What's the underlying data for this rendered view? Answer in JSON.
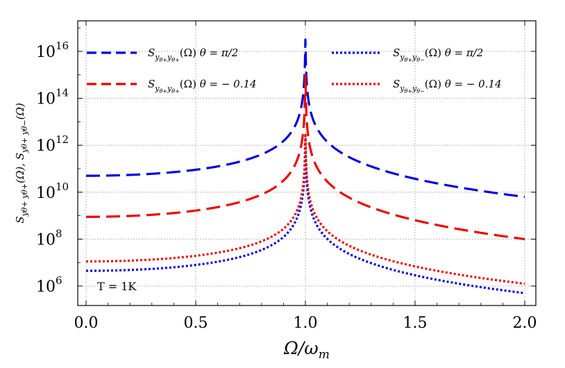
{
  "chart_data": {
    "type": "line",
    "xlabel": "Ω/ω_m",
    "ylabel": "S_{yθ+ yθ+}(Ω), S_{yθ+ yθ−}(Ω)",
    "xlim": [
      0.0,
      2.0
    ],
    "ylim_log10": [
      5.3,
      17.4
    ],
    "y_scale": "log",
    "x_ticks": [
      0.0,
      0.5,
      1.0,
      1.5,
      2.0
    ],
    "x_tick_labels": [
      "0.0",
      "0.5",
      "1.0",
      "1.5",
      "2.0"
    ],
    "y_ticks_log10": [
      6,
      8,
      10,
      12,
      14,
      16
    ],
    "y_tick_labels": [
      {
        "base": "10",
        "exp": "6"
      },
      {
        "base": "10",
        "exp": "8"
      },
      {
        "base": "10",
        "exp": "10"
      },
      {
        "base": "10",
        "exp": "12"
      },
      {
        "base": "10",
        "exp": "14"
      },
      {
        "base": "10",
        "exp": "16"
      }
    ],
    "grid": true,
    "annotation": "T = 1K",
    "series": [
      {
        "name": "S_{yθ+ yθ+}(Ω) θ = π/2",
        "color": "#0000dd",
        "style": "dashed",
        "resonance": 1.0,
        "points": [
          [
            0.0,
            10.7
          ],
          [
            0.5,
            11.0
          ],
          [
            0.8,
            11.8
          ],
          [
            0.95,
            13.0
          ],
          [
            1.0,
            16.5
          ],
          [
            1.05,
            13.1
          ],
          [
            1.2,
            12.0
          ],
          [
            1.5,
            10.9
          ],
          [
            2.0,
            9.8
          ]
        ]
      },
      {
        "name": "S_{yθ+ yθ+}(Ω) θ = − 0.14",
        "color": "#ee0000",
        "style": "dashed",
        "resonance": 1.0,
        "points": [
          [
            0.0,
            8.95
          ],
          [
            0.5,
            9.3
          ],
          [
            0.8,
            10.0
          ],
          [
            0.95,
            11.2
          ],
          [
            1.0,
            15.0
          ],
          [
            1.05,
            11.4
          ],
          [
            1.2,
            10.3
          ],
          [
            1.5,
            9.2
          ],
          [
            2.0,
            8.0
          ]
        ]
      },
      {
        "name": "S_{yθ+ yθ−}(Ω) θ = π/2",
        "color": "#0000dd",
        "style": "dotted",
        "resonance": 1.0,
        "points": [
          [
            0.0,
            6.65
          ],
          [
            0.5,
            7.0
          ],
          [
            0.8,
            7.7
          ],
          [
            0.95,
            8.8
          ],
          [
            1.0,
            12.3
          ],
          [
            1.05,
            8.8
          ],
          [
            1.2,
            7.7
          ],
          [
            1.5,
            6.8
          ],
          [
            2.0,
            5.7
          ]
        ]
      },
      {
        "name": "S_{yθ+ yθ−}(Ω) θ = − 0.14",
        "color": "#ee0000",
        "style": "dotted",
        "resonance": 1.0,
        "points": [
          [
            0.0,
            7.05
          ],
          [
            0.5,
            7.4
          ],
          [
            0.8,
            8.1
          ],
          [
            0.95,
            9.2
          ],
          [
            1.0,
            12.5
          ],
          [
            1.05,
            9.3
          ],
          [
            1.2,
            8.2
          ],
          [
            1.5,
            7.2
          ],
          [
            2.0,
            6.1
          ]
        ]
      }
    ],
    "legend": [
      {
        "sym": "S",
        "sub1": "y",
        "sub1s": "θ+",
        "sub2": "y",
        "sub2s": "θ+",
        "omega": "(Ω)",
        "theta": "θ = π/2",
        "series": 0
      },
      {
        "sym": "S",
        "sub1": "y",
        "sub1s": "θ+",
        "sub2": "y",
        "sub2s": "θ+",
        "omega": "(Ω)",
        "theta": "θ = − 0.14",
        "series": 1
      },
      {
        "sym": "S",
        "sub1": "y",
        "sub1s": "θ+",
        "sub2": "y",
        "sub2s": "θ−",
        "omega": "(Ω)",
        "theta": "θ = π/2",
        "series": 2
      },
      {
        "sym": "S",
        "sub1": "y",
        "sub1s": "θ+",
        "sub2": "y",
        "sub2s": "θ−",
        "omega": "(Ω)",
        "theta": "θ = − 0.14",
        "series": 3
      }
    ]
  }
}
